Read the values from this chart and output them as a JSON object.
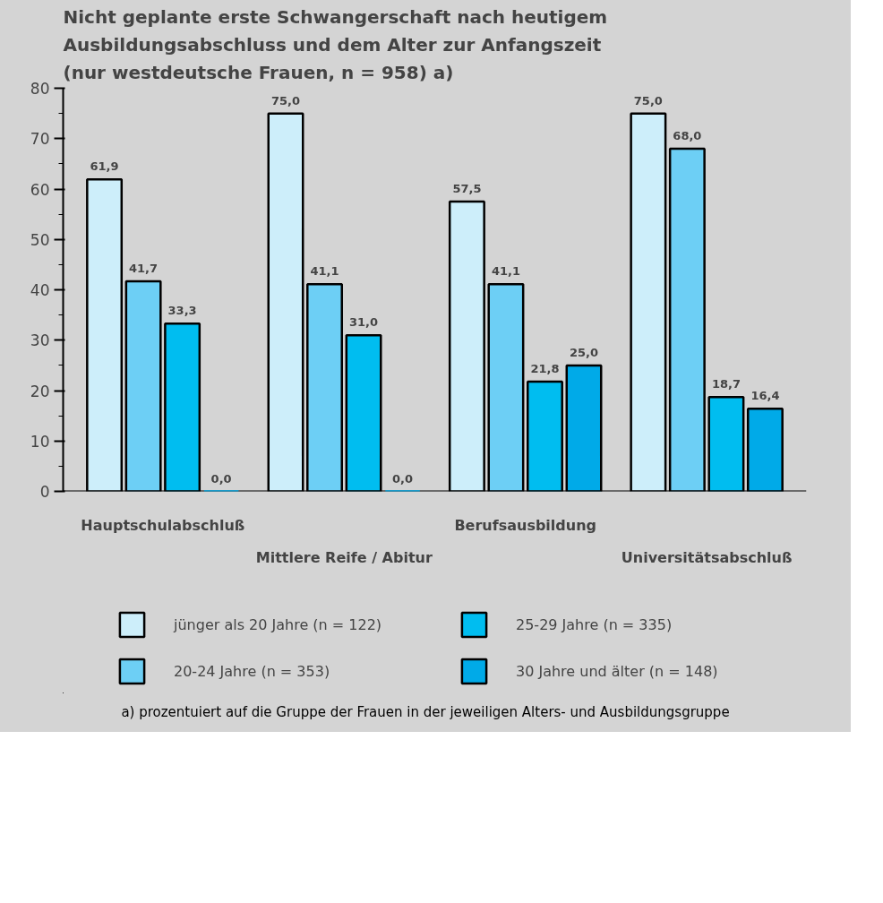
{
  "chart_data": {
    "type": "bar",
    "title": "Nicht geplante erste Schwangerschaft nach heutigem Ausbildungsabschluss und dem Alter zur Anfangszeit (nur westdeutsche Frauen, n = 958) a)",
    "categories": [
      "Hauptschulabschluß",
      "Mittlere Reife / Abitur",
      "Berufsausbildung",
      "Universitätsabschluß"
    ],
    "series": [
      {
        "name": "jünger als 20 Jahre (n = 122)",
        "color": "#cdeefa",
        "values": [
          61.9,
          75.0,
          57.5,
          75.0
        ],
        "value_labels": [
          "61,9",
          "75,0",
          "57,5",
          "75,0"
        ]
      },
      {
        "name": "20-24 Jahre (n = 353)",
        "color": "#6dcff5",
        "values": [
          41.7,
          41.1,
          41.1,
          68.0
        ],
        "value_labels": [
          "41,7",
          "41,1",
          "41,1",
          "68,0"
        ]
      },
      {
        "name": "25-29 Jahre (n = 335)",
        "color": "#00bdf0",
        "values": [
          33.3,
          31.0,
          21.8,
          18.7
        ],
        "value_labels": [
          "33,3",
          "31,0",
          "21,8",
          "18,7"
        ]
      },
      {
        "name": "30 Jahre und älter (n = 148)",
        "color": "#00aae8",
        "values": [
          0.0,
          0.0,
          25.0,
          16.4
        ],
        "value_labels": [
          "0,0",
          "0,0",
          "25,0",
          "16,4"
        ]
      }
    ],
    "ylim": [
      0,
      80
    ],
    "yticks": [
      0,
      10,
      20,
      30,
      40,
      50,
      60,
      70,
      80
    ],
    "grid": false,
    "legend": "bottom",
    "annotations": [
      "a) prozentuiert auf die Gruppe der Frauen in der jeweiligen Alters- und Ausbildungsgruppe"
    ]
  }
}
